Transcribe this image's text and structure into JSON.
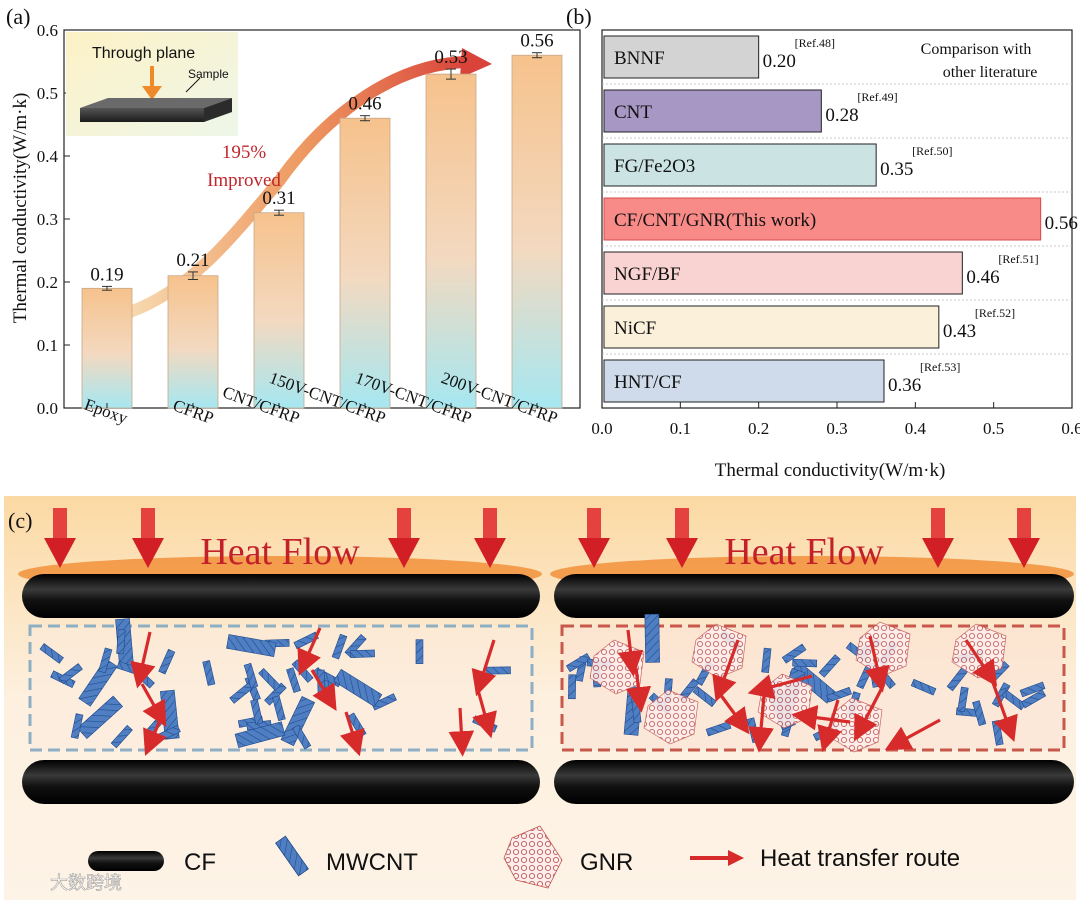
{
  "colors": {
    "bar_top": "#f7c58e",
    "bar_bottom": "#a9e6ef",
    "arrow": "#d9433a",
    "improved_text": "#c0272d",
    "heat_arrow": "#e0262b",
    "left_box_border": "#8eaec4",
    "right_box_border": "#c8584a",
    "cnt_blue": "#3d6fb5",
    "fiber": "#111111"
  },
  "chart_data": [
    {
      "type": "bar",
      "panel": "(a)",
      "categories": [
        "Epoxy",
        "CFRP",
        "CNT/CFRP",
        "150V-CNT/CFRP",
        "170V-CNT/CFRP",
        "200V-CNT/CFRP"
      ],
      "values": [
        0.19,
        0.21,
        0.31,
        0.46,
        0.53,
        0.56
      ],
      "value_labels": [
        "0.19",
        "0.21",
        "0.31",
        "0.46",
        "0.53",
        "0.56"
      ],
      "errors": [
        0.003,
        0.006,
        0.004,
        0.004,
        0.008,
        0.004
      ],
      "ylabel": "Thermal conductivity(W/m·k)",
      "ylim": [
        0,
        0.6
      ],
      "yticks": [
        "0.0",
        "0.1",
        "0.2",
        "0.3",
        "0.4",
        "0.5",
        "0.6"
      ],
      "annotation": {
        "line1": "195%",
        "line2": "Improved"
      },
      "inset": {
        "title": "Through plane",
        "label": "Sample"
      }
    },
    {
      "type": "bar",
      "orientation": "horizontal",
      "panel": "(b)",
      "categories": [
        "BNNF",
        "CNT",
        "FG/Fe2O3",
        "CF/CNT/GNR(This work)",
        "NGF/BF",
        "NiCF",
        "HNT/CF"
      ],
      "values": [
        0.2,
        0.28,
        0.35,
        0.56,
        0.46,
        0.43,
        0.36
      ],
      "value_labels": [
        "0.20",
        "0.28",
        "0.35",
        "0.56",
        "0.46",
        "0.43",
        "0.36"
      ],
      "refs": [
        "[Ref.48]",
        "[Ref.49]",
        "[Ref.50]",
        "",
        "[Ref.51]",
        "[Ref.52]",
        "[Ref.53]"
      ],
      "bar_colors": [
        "#d3d3d3",
        "#a697c4",
        "#cbe3e2",
        "#f88a88",
        "#f9d3d1",
        "#fbf0da",
        "#cfdaea"
      ],
      "highlight_index": 3,
      "xlabel": "Thermal conductivity(W/m·k)",
      "xlim": [
        0,
        0.6
      ],
      "xticks": [
        "0.0",
        "0.1",
        "0.2",
        "0.3",
        "0.4",
        "0.5",
        "0.6"
      ],
      "legend_note": {
        "line1": "Comparison  with",
        "line2": "other literature"
      }
    }
  ],
  "schematic": {
    "panel": "(c)",
    "left_title": "Heat Flow",
    "right_title": "Heat Flow",
    "legend": {
      "cf": "CF",
      "mwcnt": "MWCNT",
      "gnr": "GNR",
      "route": "Heat transfer route"
    }
  },
  "watermark": "大数跨境"
}
